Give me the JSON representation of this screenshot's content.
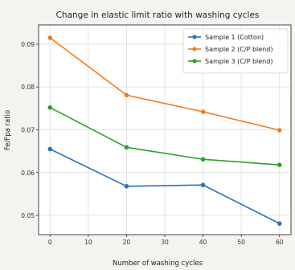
{
  "chart_data": {
    "type": "line",
    "title": "Change in elastic limit ratio with washing cycles",
    "xlabel": "Number of washing cycles",
    "ylabel": "Fe/Fpa ratio",
    "x": [
      0,
      20,
      40,
      60
    ],
    "xlim": [
      -3,
      63
    ],
    "ylim": [
      0.0455,
      0.0945
    ],
    "xticks": [
      0,
      10,
      20,
      30,
      40,
      50,
      60
    ],
    "yticks": [
      0.05,
      0.06,
      0.07,
      0.08,
      0.09
    ],
    "ytick_labels": [
      "0.05",
      "0.06",
      "0.07",
      "0.08",
      "0.09"
    ],
    "grid": true,
    "legend_position": "top-right",
    "series": [
      {
        "name": "Sample 1 (Cotton)",
        "color": "#2e72b5",
        "values": [
          0.0655,
          0.0568,
          0.0571,
          0.0481
        ]
      },
      {
        "name": "Sample 2 (C/P blend)",
        "color": "#f27c1e",
        "values": [
          0.0915,
          0.0781,
          0.0742,
          0.0699
        ]
      },
      {
        "name": "Sample 3 (C/P blend)",
        "color": "#2ea02c",
        "values": [
          0.0752,
          0.0659,
          0.0631,
          0.0618
        ]
      }
    ]
  }
}
